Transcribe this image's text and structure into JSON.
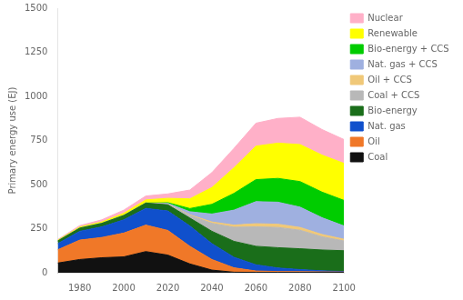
{
  "chart_data": {
    "type": "area",
    "stacked": true,
    "ylabel": "Primary energy use (EJ)",
    "x": [
      1970,
      1980,
      1990,
      2000,
      2010,
      2020,
      2030,
      2040,
      2050,
      2060,
      2070,
      2080,
      2090,
      2100
    ],
    "xlim": [
      1970,
      2100
    ],
    "xticks": [
      1980,
      2000,
      2020,
      2040,
      2060,
      2080,
      2100
    ],
    "ylim": [
      0,
      1500
    ],
    "yticks": [
      0,
      250,
      500,
      750,
      1000,
      1250,
      1500
    ],
    "grid": false,
    "legend": "right",
    "series": [
      {
        "name": "Coal",
        "color": "#111111",
        "values": [
          55,
          75,
          85,
          90,
          120,
          100,
          50,
          15,
          3,
          2,
          2,
          2,
          2,
          2
        ]
      },
      {
        "name": "Oil",
        "color": "#f07828",
        "values": [
          75,
          110,
          115,
          135,
          150,
          140,
          100,
          60,
          25,
          8,
          5,
          4,
          3,
          2
        ]
      },
      {
        "name": "Nat. gas",
        "color": "#1050cc",
        "values": [
          35,
          50,
          60,
          75,
          95,
          110,
          115,
          90,
          60,
          35,
          20,
          12,
          6,
          3
        ]
      },
      {
        "name": "Bio-energy",
        "color": "#1a6e1a",
        "values": [
          15,
          18,
          20,
          25,
          30,
          35,
          45,
          70,
          90,
          105,
          115,
          118,
          118,
          118
        ]
      },
      {
        "name": "Coal + CCS",
        "color": "#b8b8b8",
        "values": [
          0,
          0,
          0,
          0,
          0,
          3,
          15,
          45,
          80,
          110,
          115,
          105,
          75,
          55
        ]
      },
      {
        "name": "Oil + CCS",
        "color": "#f0c878",
        "values": [
          0,
          0,
          0,
          0,
          0,
          1,
          3,
          8,
          12,
          18,
          18,
          16,
          13,
          10
        ]
      },
      {
        "name": "Nat. gas + CCS",
        "color": "#9fb0e0",
        "values": [
          0,
          0,
          0,
          0,
          0,
          4,
          18,
          45,
          85,
          125,
          125,
          115,
          95,
          75
        ]
      },
      {
        "name": "Bio-energy + CCS",
        "color": "#00cc00",
        "values": [
          0,
          0,
          0,
          0,
          0,
          4,
          18,
          55,
          95,
          125,
          135,
          145,
          145,
          145
        ]
      },
      {
        "name": "Renewable",
        "color": "#ffff00",
        "values": [
          4,
          6,
          8,
          12,
          18,
          25,
          55,
          95,
          145,
          190,
          200,
          210,
          210,
          210
        ]
      },
      {
        "name": "Nuclear",
        "color": "#ffb0c8",
        "values": [
          4,
          8,
          12,
          18,
          22,
          25,
          50,
          85,
          110,
          130,
          140,
          155,
          145,
          135
        ]
      }
    ]
  }
}
